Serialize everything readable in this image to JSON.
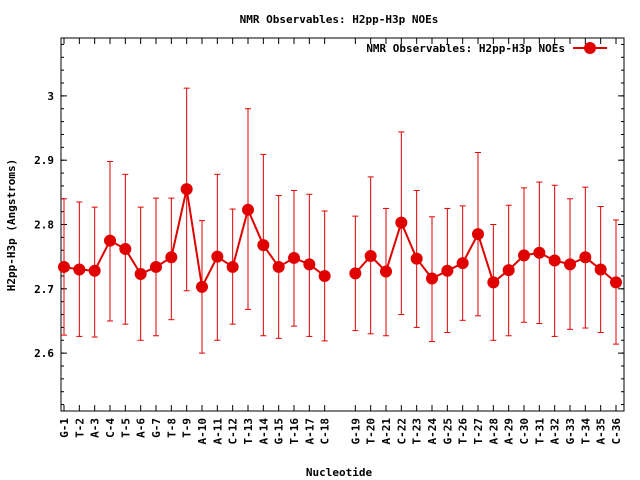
{
  "chart_data": {
    "type": "line",
    "title": "NMR Observables: H2pp-H3p NOEs",
    "xlabel": "Nucleotide",
    "ylabel": "H2pp-H3p (Angstroms)",
    "ylim": [
      2.51,
      3.09
    ],
    "yticks": [
      2.6,
      2.7,
      2.8,
      2.9,
      3
    ],
    "ytick_labels": [
      "2.6",
      "2.7",
      "2.8",
      "2.9",
      "3"
    ],
    "xlim": [
      0.5,
      36.5
    ],
    "grid": false,
    "legend_position": "top-right",
    "color": "#e00000",
    "series": [
      {
        "name": "NMR Observables: H2pp-H3p NOEs",
        "segments": [
          [
            {
              "label": "G-1",
              "x": 1,
              "y": 2.734,
              "lo": 2.628,
              "hi": 2.84
            },
            {
              "label": "T-2",
              "x": 2,
              "y": 2.73,
              "lo": 2.626,
              "hi": 2.835
            },
            {
              "label": "A-3",
              "x": 3,
              "y": 2.728,
              "lo": 2.625,
              "hi": 2.827
            },
            {
              "label": "C-4",
              "x": 4,
              "y": 2.775,
              "lo": 2.65,
              "hi": 2.898
            },
            {
              "label": "T-5",
              "x": 5,
              "y": 2.762,
              "lo": 2.645,
              "hi": 2.878
            },
            {
              "label": "A-6",
              "x": 6,
              "y": 2.723,
              "lo": 2.62,
              "hi": 2.827
            },
            {
              "label": "G-7",
              "x": 7,
              "y": 2.734,
              "lo": 2.627,
              "hi": 2.841
            },
            {
              "label": "T-8",
              "x": 8,
              "y": 2.749,
              "lo": 2.652,
              "hi": 2.841
            },
            {
              "label": "T-9",
              "x": 9,
              "y": 2.855,
              "lo": 2.697,
              "hi": 3.012
            },
            {
              "label": "A-10",
              "x": 10,
              "y": 2.703,
              "lo": 2.6,
              "hi": 2.806
            },
            {
              "label": "A-11",
              "x": 11,
              "y": 2.75,
              "lo": 2.62,
              "hi": 2.878
            },
            {
              "label": "C-12",
              "x": 12,
              "y": 2.734,
              "lo": 2.645,
              "hi": 2.824
            },
            {
              "label": "T-13",
              "x": 13,
              "y": 2.823,
              "lo": 2.668,
              "hi": 2.98
            },
            {
              "label": "A-14",
              "x": 14,
              "y": 2.768,
              "lo": 2.627,
              "hi": 2.909
            },
            {
              "label": "G-15",
              "x": 15,
              "y": 2.734,
              "lo": 2.623,
              "hi": 2.845
            },
            {
              "label": "T-16",
              "x": 16,
              "y": 2.748,
              "lo": 2.642,
              "hi": 2.853
            },
            {
              "label": "A-17",
              "x": 17,
              "y": 2.738,
              "lo": 2.626,
              "hi": 2.847
            },
            {
              "label": "C-18",
              "x": 18,
              "y": 2.72,
              "lo": 2.619,
              "hi": 2.821
            }
          ],
          [
            {
              "label": "G-19",
              "x": 20,
              "y": 2.724,
              "lo": 2.635,
              "hi": 2.813
            },
            {
              "label": "T-20",
              "x": 21,
              "y": 2.751,
              "lo": 2.63,
              "hi": 2.874
            },
            {
              "label": "A-21",
              "x": 22,
              "y": 2.727,
              "lo": 2.627,
              "hi": 2.825
            },
            {
              "label": "C-22",
              "x": 23,
              "y": 2.803,
              "lo": 2.66,
              "hi": 2.944
            },
            {
              "label": "T-23",
              "x": 24,
              "y": 2.747,
              "lo": 2.64,
              "hi": 2.853
            },
            {
              "label": "A-24",
              "x": 25,
              "y": 2.716,
              "lo": 2.618,
              "hi": 2.812
            },
            {
              "label": "G-25",
              "x": 26,
              "y": 2.728,
              "lo": 2.632,
              "hi": 2.825
            },
            {
              "label": "T-26",
              "x": 27,
              "y": 2.74,
              "lo": 2.651,
              "hi": 2.829
            },
            {
              "label": "T-27",
              "x": 28,
              "y": 2.785,
              "lo": 2.658,
              "hi": 2.912
            },
            {
              "label": "A-28",
              "x": 29,
              "y": 2.71,
              "lo": 2.62,
              "hi": 2.8
            },
            {
              "label": "A-29",
              "x": 30,
              "y": 2.729,
              "lo": 2.627,
              "hi": 2.83
            },
            {
              "label": "C-30",
              "x": 31,
              "y": 2.752,
              "lo": 2.648,
              "hi": 2.857
            },
            {
              "label": "T-31",
              "x": 32,
              "y": 2.756,
              "lo": 2.646,
              "hi": 2.866
            },
            {
              "label": "A-32",
              "x": 33,
              "y": 2.744,
              "lo": 2.626,
              "hi": 2.861
            },
            {
              "label": "G-33",
              "x": 34,
              "y": 2.738,
              "lo": 2.637,
              "hi": 2.84
            },
            {
              "label": "T-34",
              "x": 35,
              "y": 2.749,
              "lo": 2.639,
              "hi": 2.858
            },
            {
              "label": "A-35",
              "x": 36,
              "y": 2.73,
              "lo": 2.632,
              "hi": 2.828
            },
            {
              "label": "C-36",
              "x": 37,
              "y": 2.71,
              "lo": 2.614,
              "hi": 2.807
            }
          ]
        ]
      }
    ]
  }
}
